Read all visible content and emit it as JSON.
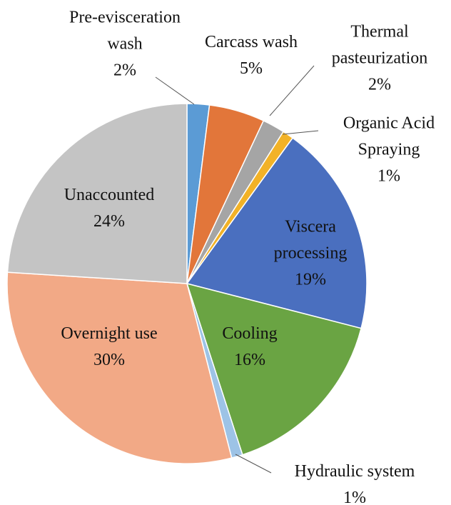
{
  "chart_data": {
    "type": "pie",
    "categories": [
      "Pre-evisceration wash",
      "Carcass wash",
      "Thermal pasteurization",
      "Organic Acid Spraying",
      "Viscera processing",
      "Cooling",
      "Hydraulic system",
      "Overnight use",
      "Unaccounted"
    ],
    "values": [
      2,
      5,
      2,
      1,
      19,
      16,
      1,
      30,
      24
    ],
    "value_labels": [
      "2%",
      "5%",
      "2%",
      "1%",
      "19%",
      "16%",
      "1%",
      "30%",
      "24%"
    ],
    "colors": [
      "#5b9bd5",
      "#e2763a",
      "#a5a5a5",
      "#f2b227",
      "#4a6fbf",
      "#6aa443",
      "#9dc3e6",
      "#f2a986",
      "#c4c4c4"
    ]
  }
}
